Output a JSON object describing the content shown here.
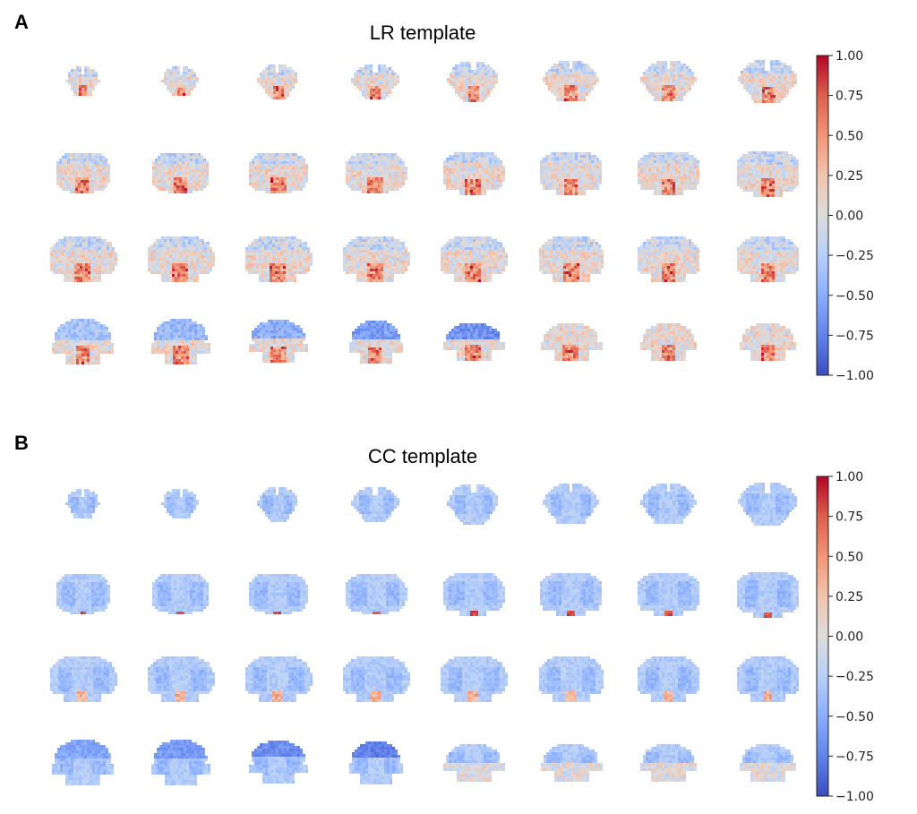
{
  "panels": [
    {
      "letter": "A",
      "title": "LR template",
      "mode": "LR",
      "colorbar": {
        "min": -1.0,
        "max": 1.0,
        "ticks": [
          "1.00",
          "0.75",
          "0.50",
          "0.25",
          "0.00",
          "−0.25",
          "−0.50",
          "−0.75",
          "−1.00"
        ]
      }
    },
    {
      "letter": "B",
      "title": "CC template",
      "mode": "CC",
      "colorbar": {
        "min": -1.0,
        "max": 1.0,
        "ticks": [
          "1.00",
          "0.75",
          "0.50",
          "0.25",
          "0.00",
          "−0.25",
          "−0.50",
          "−0.75",
          "−1.00"
        ]
      }
    }
  ],
  "grid": {
    "rows": 4,
    "cols": 8
  },
  "colormap": "coolwarm"
}
